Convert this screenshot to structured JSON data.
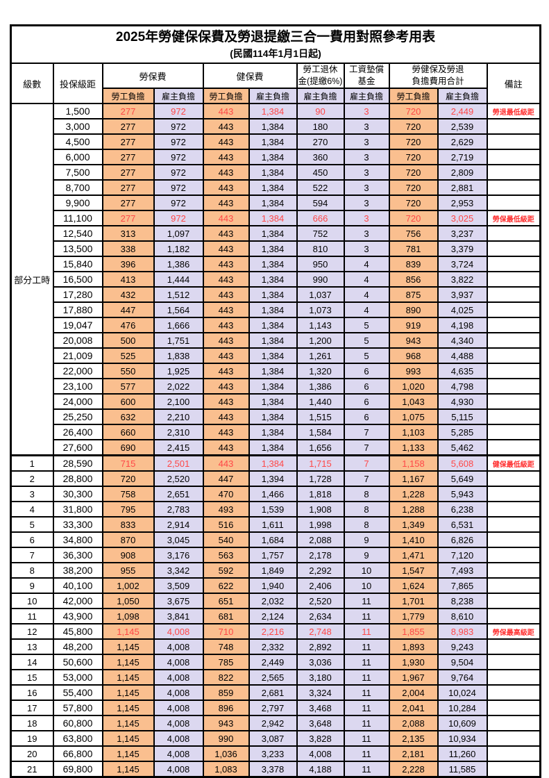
{
  "title": "2025年勞健保保費及勞退提繳三合一費用對照參考用表",
  "subtitle": "(民國114年1月1日起)",
  "columns": {
    "level": "級數",
    "bracket": "投保級距",
    "labor_fee": "勞保費",
    "health_fee": "健保費",
    "pension_l1": "勞工退休",
    "pension_l2": "金(提繳6%)",
    "wage_fund_l1": "工資墊償",
    "wage_fund_l2": "基金",
    "total_l1": "勞健保及勞退",
    "total_l2": "負擔費用合計",
    "note": "備註",
    "employee_share": "勞工負擔",
    "employer_share": "雇主負擔"
  },
  "part_time_label": "部分工時",
  "colors": {
    "employee_bg": "#FABF8F",
    "employer_bg": "#DCD8F0",
    "highlight": "#FF4747",
    "note_red": "#FF3030",
    "border": "#000000"
  },
  "rows": [
    {
      "level": "",
      "bracket": "1,500",
      "values": [
        "277",
        "972",
        "443",
        "1,384",
        "90",
        "3",
        "720",
        "2,449"
      ],
      "note": "勞退最低級距",
      "highlight": true
    },
    {
      "level": "",
      "bracket": "3,000",
      "values": [
        "277",
        "972",
        "443",
        "1,384",
        "180",
        "3",
        "720",
        "2,539"
      ],
      "note": ""
    },
    {
      "level": "",
      "bracket": "4,500",
      "values": [
        "277",
        "972",
        "443",
        "1,384",
        "270",
        "3",
        "720",
        "2,629"
      ],
      "note": ""
    },
    {
      "level": "",
      "bracket": "6,000",
      "values": [
        "277",
        "972",
        "443",
        "1,384",
        "360",
        "3",
        "720",
        "2,719"
      ],
      "note": ""
    },
    {
      "level": "",
      "bracket": "7,500",
      "values": [
        "277",
        "972",
        "443",
        "1,384",
        "450",
        "3",
        "720",
        "2,809"
      ],
      "note": ""
    },
    {
      "level": "",
      "bracket": "8,700",
      "values": [
        "277",
        "972",
        "443",
        "1,384",
        "522",
        "3",
        "720",
        "2,881"
      ],
      "note": ""
    },
    {
      "level": "",
      "bracket": "9,900",
      "values": [
        "277",
        "972",
        "443",
        "1,384",
        "594",
        "3",
        "720",
        "2,953"
      ],
      "note": ""
    },
    {
      "level": "",
      "bracket": "11,100",
      "values": [
        "277",
        "972",
        "443",
        "1,384",
        "666",
        "3",
        "720",
        "3,025"
      ],
      "note": "勞保最低級距",
      "highlight": true
    },
    {
      "level": "",
      "bracket": "12,540",
      "values": [
        "313",
        "1,097",
        "443",
        "1,384",
        "752",
        "3",
        "756",
        "3,237"
      ],
      "note": ""
    },
    {
      "level": "",
      "bracket": "13,500",
      "values": [
        "338",
        "1,182",
        "443",
        "1,384",
        "810",
        "3",
        "781",
        "3,379"
      ],
      "note": ""
    },
    {
      "level": "",
      "bracket": "15,840",
      "values": [
        "396",
        "1,386",
        "443",
        "1,384",
        "950",
        "4",
        "839",
        "3,724"
      ],
      "note": ""
    },
    {
      "level": "",
      "bracket": "16,500",
      "values": [
        "413",
        "1,444",
        "443",
        "1,384",
        "990",
        "4",
        "856",
        "3,822"
      ],
      "note": ""
    },
    {
      "level": "",
      "bracket": "17,280",
      "values": [
        "432",
        "1,512",
        "443",
        "1,384",
        "1,037",
        "4",
        "875",
        "3,937"
      ],
      "note": ""
    },
    {
      "level": "",
      "bracket": "17,880",
      "values": [
        "447",
        "1,564",
        "443",
        "1,384",
        "1,073",
        "4",
        "890",
        "4,025"
      ],
      "note": ""
    },
    {
      "level": "",
      "bracket": "19,047",
      "values": [
        "476",
        "1,666",
        "443",
        "1,384",
        "1,143",
        "5",
        "919",
        "4,198"
      ],
      "note": ""
    },
    {
      "level": "",
      "bracket": "20,008",
      "values": [
        "500",
        "1,751",
        "443",
        "1,384",
        "1,200",
        "5",
        "943",
        "4,340"
      ],
      "note": ""
    },
    {
      "level": "",
      "bracket": "21,009",
      "values": [
        "525",
        "1,838",
        "443",
        "1,384",
        "1,261",
        "5",
        "968",
        "4,488"
      ],
      "note": ""
    },
    {
      "level": "",
      "bracket": "22,000",
      "values": [
        "550",
        "1,925",
        "443",
        "1,384",
        "1,320",
        "6",
        "993",
        "4,635"
      ],
      "note": ""
    },
    {
      "level": "",
      "bracket": "23,100",
      "values": [
        "577",
        "2,022",
        "443",
        "1,384",
        "1,386",
        "6",
        "1,020",
        "4,798"
      ],
      "note": ""
    },
    {
      "level": "",
      "bracket": "24,000",
      "values": [
        "600",
        "2,100",
        "443",
        "1,384",
        "1,440",
        "6",
        "1,043",
        "4,930"
      ],
      "note": ""
    },
    {
      "level": "",
      "bracket": "25,250",
      "values": [
        "632",
        "2,210",
        "443",
        "1,384",
        "1,515",
        "6",
        "1,075",
        "5,115"
      ],
      "note": ""
    },
    {
      "level": "",
      "bracket": "26,400",
      "values": [
        "660",
        "2,310",
        "443",
        "1,384",
        "1,584",
        "7",
        "1,103",
        "5,285"
      ],
      "note": ""
    },
    {
      "level": "",
      "bracket": "27,600",
      "values": [
        "690",
        "2,415",
        "443",
        "1,384",
        "1,656",
        "7",
        "1,133",
        "5,462"
      ],
      "note": ""
    },
    {
      "level": "1",
      "bracket": "28,590",
      "values": [
        "715",
        "2,501",
        "443",
        "1,384",
        "1,715",
        "7",
        "1,158",
        "5,608"
      ],
      "note": "健保最低級距",
      "highlight": true,
      "section_start": true
    },
    {
      "level": "2",
      "bracket": "28,800",
      "values": [
        "720",
        "2,520",
        "447",
        "1,394",
        "1,728",
        "7",
        "1,167",
        "5,649"
      ],
      "note": ""
    },
    {
      "level": "3",
      "bracket": "30,300",
      "values": [
        "758",
        "2,651",
        "470",
        "1,466",
        "1,818",
        "8",
        "1,228",
        "5,943"
      ],
      "note": ""
    },
    {
      "level": "4",
      "bracket": "31,800",
      "values": [
        "795",
        "2,783",
        "493",
        "1,539",
        "1,908",
        "8",
        "1,288",
        "6,238"
      ],
      "note": ""
    },
    {
      "level": "5",
      "bracket": "33,300",
      "values": [
        "833",
        "2,914",
        "516",
        "1,611",
        "1,998",
        "8",
        "1,349",
        "6,531"
      ],
      "note": ""
    },
    {
      "level": "6",
      "bracket": "34,800",
      "values": [
        "870",
        "3,045",
        "540",
        "1,684",
        "2,088",
        "9",
        "1,410",
        "6,826"
      ],
      "note": ""
    },
    {
      "level": "7",
      "bracket": "36,300",
      "values": [
        "908",
        "3,176",
        "563",
        "1,757",
        "2,178",
        "9",
        "1,471",
        "7,120"
      ],
      "note": ""
    },
    {
      "level": "8",
      "bracket": "38,200",
      "values": [
        "955",
        "3,342",
        "592",
        "1,849",
        "2,292",
        "10",
        "1,547",
        "7,493"
      ],
      "note": ""
    },
    {
      "level": "9",
      "bracket": "40,100",
      "values": [
        "1,002",
        "3,509",
        "622",
        "1,940",
        "2,406",
        "10",
        "1,624",
        "7,865"
      ],
      "note": ""
    },
    {
      "level": "10",
      "bracket": "42,000",
      "values": [
        "1,050",
        "3,675",
        "651",
        "2,032",
        "2,520",
        "11",
        "1,701",
        "8,238"
      ],
      "note": ""
    },
    {
      "level": "11",
      "bracket": "43,900",
      "values": [
        "1,098",
        "3,841",
        "681",
        "2,124",
        "2,634",
        "11",
        "1,779",
        "8,610"
      ],
      "note": ""
    },
    {
      "level": "12",
      "bracket": "45,800",
      "values": [
        "1,145",
        "4,008",
        "710",
        "2,216",
        "2,748",
        "11",
        "1,855",
        "8,983"
      ],
      "note": "勞保最高級距",
      "highlight": true
    },
    {
      "level": "13",
      "bracket": "48,200",
      "values": [
        "1,145",
        "4,008",
        "748",
        "2,332",
        "2,892",
        "11",
        "1,893",
        "9,243"
      ],
      "note": ""
    },
    {
      "level": "14",
      "bracket": "50,600",
      "values": [
        "1,145",
        "4,008",
        "785",
        "2,449",
        "3,036",
        "11",
        "1,930",
        "9,504"
      ],
      "note": ""
    },
    {
      "level": "15",
      "bracket": "53,000",
      "values": [
        "1,145",
        "4,008",
        "822",
        "2,565",
        "3,180",
        "11",
        "1,967",
        "9,764"
      ],
      "note": ""
    },
    {
      "level": "16",
      "bracket": "55,400",
      "values": [
        "1,145",
        "4,008",
        "859",
        "2,681",
        "3,324",
        "11",
        "2,004",
        "10,024"
      ],
      "note": ""
    },
    {
      "level": "17",
      "bracket": "57,800",
      "values": [
        "1,145",
        "4,008",
        "896",
        "2,797",
        "3,468",
        "11",
        "2,041",
        "10,284"
      ],
      "note": ""
    },
    {
      "level": "18",
      "bracket": "60,800",
      "values": [
        "1,145",
        "4,008",
        "943",
        "2,942",
        "3,648",
        "11",
        "2,088",
        "10,609"
      ],
      "note": ""
    },
    {
      "level": "19",
      "bracket": "63,800",
      "values": [
        "1,145",
        "4,008",
        "990",
        "3,087",
        "3,828",
        "11",
        "2,135",
        "10,934"
      ],
      "note": ""
    },
    {
      "level": "20",
      "bracket": "66,800",
      "values": [
        "1,145",
        "4,008",
        "1,036",
        "3,233",
        "4,008",
        "11",
        "2,181",
        "11,260"
      ],
      "note": ""
    },
    {
      "level": "21",
      "bracket": "69,800",
      "values": [
        "1,145",
        "4,008",
        "1,083",
        "3,378",
        "4,188",
        "11",
        "2,228",
        "11,585"
      ],
      "note": ""
    }
  ]
}
